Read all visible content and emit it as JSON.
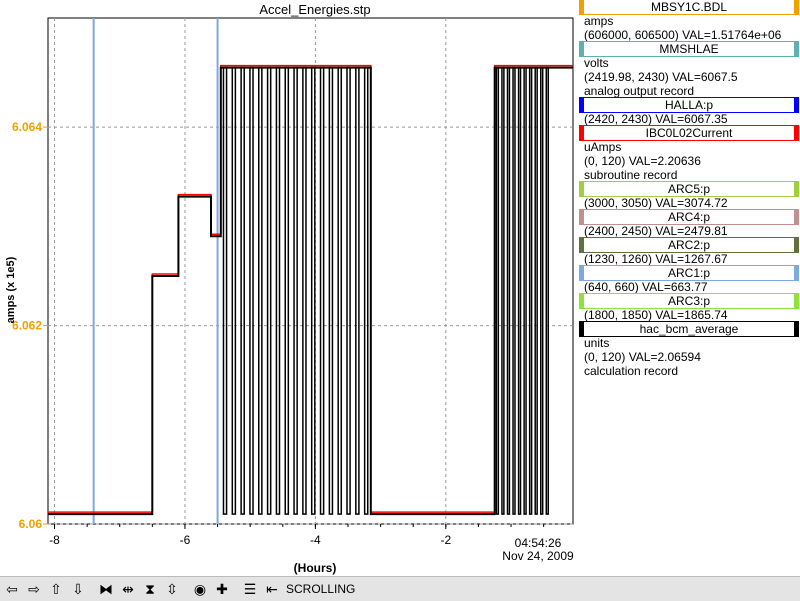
{
  "chart_data": {
    "type": "line",
    "title": "Accel_Energies.stp",
    "xlabel": "(Hours)",
    "ylabel": "amps (x 1e5)",
    "xlim": [
      -8.1,
      -0.05
    ],
    "ylim": [
      6.06,
      6.0651
    ],
    "xticks": [
      -8,
      -6,
      -4,
      -2
    ],
    "yticks": [
      6.06,
      6.062,
      6.064
    ],
    "ytick_labels": [
      "6.06",
      "6.062",
      "6.064"
    ],
    "grid": true,
    "time_label": "04:54:26",
    "date_label": "Nov 24, 2009",
    "accent_color": "#f0a000",
    "series": [
      {
        "name": "MBSY1C.BDL",
        "color": "#000000",
        "step_x": [
          -8.1,
          -6.5,
          -6.5,
          -6.1,
          -6.1,
          -5.6,
          -5.6,
          -5.45,
          -5.45,
          -3.15,
          -3.15,
          -1.25,
          -1.25,
          -0.05
        ],
        "step_y": [
          6.0601,
          6.0601,
          6.0625,
          6.0625,
          6.0633,
          6.0633,
          6.0629,
          6.0629,
          6.0646,
          6.0646,
          6.0601,
          6.0601,
          6.0646,
          6.0646
        ]
      },
      {
        "name": "IBC0L02Current",
        "color": "#ff0000"
      },
      {
        "name": "ARC1:p",
        "color": "#80a8e0",
        "vlines": [
          -7.4,
          -5.5
        ]
      }
    ]
  },
  "legend": [
    {
      "color": "#f0a000",
      "name": "MBSY1C.BDL",
      "lines": [
        "amps",
        "(606000, 606500)  VAL=1.51764e+06"
      ]
    },
    {
      "color": "#60b0b0",
      "name": "MMSHLAE",
      "lines": [
        "volts",
        "(2419.98, 2430)  VAL=6067.5",
        "analog output record"
      ]
    },
    {
      "color": "#0000ff",
      "name": "HALLA:p",
      "lines": [
        "(2420, 2430)  VAL=6067.35"
      ]
    },
    {
      "color": "#ff0000",
      "name": "IBC0L02Current",
      "lines": [
        "uAmps",
        "(0, 120)  VAL=2.20636",
        "subroutine record"
      ]
    },
    {
      "color": "#a0d040",
      "name": "ARC5:p",
      "lines": [
        "(3000, 3050)  VAL=3074.72"
      ]
    },
    {
      "color": "#c09090",
      "name": "ARC4:p",
      "lines": [
        "(2400, 2450)  VAL=2479.81"
      ]
    },
    {
      "color": "#607040",
      "name": "ARC2:p",
      "lines": [
        "(1230, 1260)  VAL=1267.67"
      ]
    },
    {
      "color": "#80a8e0",
      "name": "ARC1:p",
      "lines": [
        "(640, 660)  VAL=663.77"
      ]
    },
    {
      "color": "#90e040",
      "name": "ARC3:p",
      "lines": [
        "(1800, 1850)  VAL=1865.74"
      ]
    },
    {
      "color": "#000000",
      "name": "hac_bcm_average",
      "lines": [
        "units",
        "(0, 120)  VAL=2.06594",
        "calculation record"
      ]
    }
  ],
  "toolbar": {
    "buttons": [
      {
        "name": "pan-left-button",
        "glyph": "⇦"
      },
      {
        "name": "pan-right-button",
        "glyph": "⇨"
      },
      {
        "name": "pan-up-button",
        "glyph": "⇧"
      },
      {
        "name": "pan-down-button",
        "glyph": "⇩"
      },
      {
        "name": "zoom-x-in-button",
        "glyph": "⧓"
      },
      {
        "name": "zoom-x-out-button",
        "glyph": "⇹"
      },
      {
        "name": "zoom-y-in-button",
        "glyph": "⧗"
      },
      {
        "name": "zoom-y-out-button",
        "glyph": "⇳"
      },
      {
        "name": "reset-button",
        "glyph": "◉"
      },
      {
        "name": "add-button",
        "glyph": "✚"
      },
      {
        "name": "config-button",
        "glyph": "☰"
      },
      {
        "name": "scroll-mode-button",
        "glyph": "⇤"
      }
    ],
    "status": "SCROLLING"
  }
}
